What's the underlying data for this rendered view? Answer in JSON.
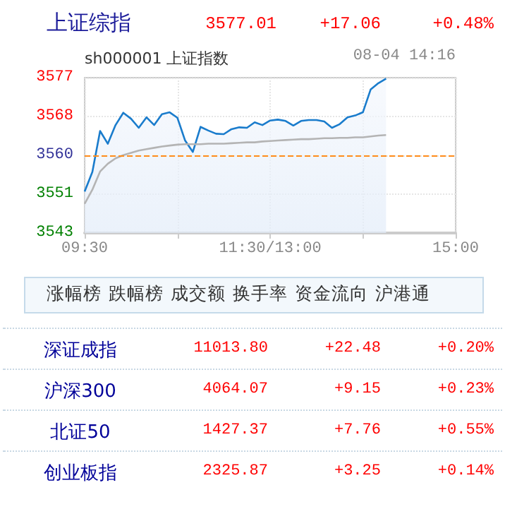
{
  "chart_data": {
    "type": "line",
    "title": "上证综指",
    "subtitle": "sh000001 上证指数",
    "annotations": [
      "3577.01",
      "+17.06",
      "+0.48%",
      "08-04 14:16",
      "涨幅榜",
      "跌幅榜",
      "成交额",
      "换手率",
      "资金流向",
      "沪港通",
      "深证成指",
      "11013.80",
      "+22.48",
      "+0.20%",
      "沪深300",
      "4064.07",
      "+9.15",
      "+0.23%",
      "北证50",
      "1427.37",
      "+7.76",
      "+0.55%",
      "创业板指",
      "2325.87",
      "+3.25",
      "+0.14%"
    ],
    "categories": [
      "09:30",
      null,
      null,
      null,
      null,
      null,
      null,
      null,
      null,
      null,
      null,
      null,
      null,
      null,
      null,
      null,
      null,
      null,
      null,
      null,
      null,
      null,
      null,
      null,
      "11:30/13:00",
      null,
      null,
      null,
      null,
      null,
      null,
      null,
      null,
      null,
      null,
      null,
      null,
      null,
      null,
      null,
      null,
      null,
      null,
      null,
      null,
      null,
      null,
      null,
      "15:00"
    ],
    "series": [
      {
        "type": "area",
        "color": "#1a7ccc",
        "values": [
          3552.0,
          3556.3,
          3565.3,
          3562.5,
          3566.6,
          3569.3,
          3568.0,
          3566.0,
          3568.3,
          3566.6,
          3569.0,
          3569.4,
          3568.2,
          3563.2,
          3560.7,
          3566.2,
          3565.4,
          3564.7,
          3564.6,
          3565.7,
          3566.1,
          3566.0,
          3567.2,
          3566.6,
          3567.6,
          3567.8,
          3567.5,
          3566.5,
          3567.5,
          3567.7,
          3567.7,
          3567.4,
          3566.0,
          3566.8,
          3568.3,
          3568.7,
          3569.4,
          3574.4,
          3575.8,
          3576.8,
          null,
          null,
          null,
          null,
          null,
          null,
          null,
          null,
          null
        ]
      },
      {
        "color": "#b4b4b4",
        "values": [
          3549.3,
          3552.4,
          3556.4,
          3558.1,
          3559.3,
          3560.0,
          3560.5,
          3561.0,
          3561.3,
          3561.6,
          3561.9,
          3562.1,
          3562.3,
          3562.4,
          3562.4,
          3562.4,
          3562.5,
          3562.5,
          3562.5,
          3562.6,
          3562.7,
          3562.8,
          3562.8,
          3563.0,
          3563.1,
          3563.2,
          3563.3,
          3563.4,
          3563.5,
          3563.5,
          3563.6,
          3563.7,
          3563.7,
          3563.8,
          3563.8,
          3563.9,
          3563.9,
          3564.1,
          3564.3,
          3564.4,
          null,
          null,
          null,
          null,
          null,
          null,
          null,
          null,
          null
        ]
      }
    ],
    "ylim": [
      3542.89,
      3577.01
    ],
    "yticks": [
      {
        "value": 3542.89,
        "label": "3543"
      },
      {
        "value": 3551.42,
        "label": "3551"
      },
      {
        "value": 3559.95,
        "label": "3560"
      },
      {
        "value": 3568.48,
        "label": "3568"
      },
      {
        "value": 3577.01,
        "label": "3577"
      }
    ],
    "ref_lines": [
      {
        "axis": "y",
        "value": 3559.95,
        "color": "#ff8c1a",
        "line_style": "dashed"
      }
    ],
    "grid": true,
    "marker": "none",
    "line_style": "solid"
  }
}
